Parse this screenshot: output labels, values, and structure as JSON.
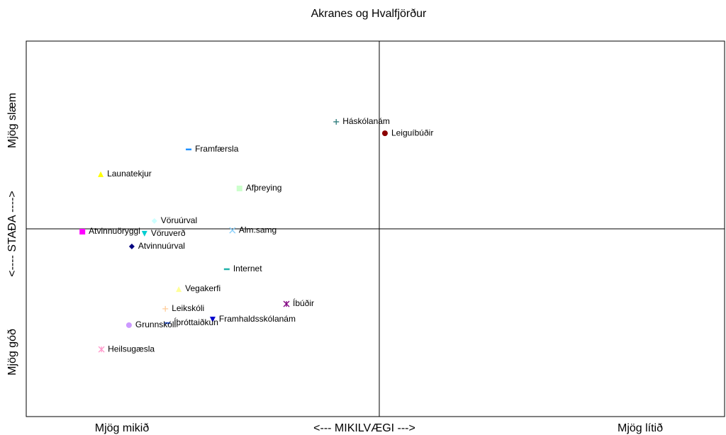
{
  "chart_data": {
    "type": "scatter",
    "title": "Akranes og Hvalfjörður",
    "x_labels": [
      "Mjög mikið",
      "<---   MIKILVÆGI   --->",
      "Mjög lítið"
    ],
    "y_labels": [
      "Mjög góð",
      "<----   STAÐA   ---->",
      "Mjög slæm"
    ],
    "xlim": [
      -1,
      0.978
    ],
    "ylim": [
      -1,
      1
    ],
    "series": [
      {
        "name": "Háskólanám",
        "color": "#2e7d7d",
        "marker": "plus",
        "x": -0.122,
        "y": 0.57
      },
      {
        "name": "Leiguíbúðir",
        "color": "#8b0000",
        "marker": "circle",
        "x": 0.016,
        "y": 0.509
      },
      {
        "name": "Framfærsla",
        "color": "#1e90ff",
        "marker": "dash",
        "x": -0.54,
        "y": 0.423
      },
      {
        "name": "Launatekjur",
        "color": "#ffff00",
        "marker": "triangle",
        "x": -0.789,
        "y": 0.291
      },
      {
        "name": "Afþreying",
        "color": "#ccffcc",
        "marker": "square",
        "x": -0.396,
        "y": 0.215
      },
      {
        "name": "Vöruúrval",
        "color": "#ccffff",
        "marker": "diamond",
        "x": -0.637,
        "y": 0.042
      },
      {
        "name": "Atvinnuöryggi",
        "color": "#ff00ff",
        "marker": "square",
        "x": -0.841,
        "y": -0.015
      },
      {
        "name": "Vöruverð",
        "color": "#00ced1",
        "marker": "triangle-down",
        "x": -0.665,
        "y": -0.026
      },
      {
        "name": "Alm.samg",
        "color": "#87cefa",
        "marker": "x",
        "x": -0.416,
        "y": -0.008
      },
      {
        "name": "Atvinnuúrval",
        "color": "#000080",
        "marker": "diamond",
        "x": -0.701,
        "y": -0.094
      },
      {
        "name": "Internet",
        "color": "#20b2aa",
        "marker": "dash",
        "x": -0.432,
        "y": -0.215
      },
      {
        "name": "Vegakerfi",
        "color": "#ffff99",
        "marker": "triangle",
        "x": -0.568,
        "y": -0.321
      },
      {
        "name": "Íbúðir",
        "color": "#800080",
        "marker": "asterisk",
        "x": -0.263,
        "y": -0.4
      },
      {
        "name": "Leikskóli",
        "color": "#ffcc99",
        "marker": "plus",
        "x": -0.606,
        "y": -0.426
      },
      {
        "name": "Framhaldsskólanám",
        "color": "#0000cd",
        "marker": "triangle-down",
        "x": -0.472,
        "y": -0.483
      },
      {
        "name": "Íþróttaiðkun",
        "color": "#4169e1",
        "marker": "dash",
        "x": -0.6,
        "y": -0.502
      },
      {
        "name": "Grunnskóli",
        "color": "#cc99ff",
        "marker": "circle",
        "x": -0.709,
        "y": -0.513
      },
      {
        "name": "Heilsugæsla",
        "color": "#ff99cc",
        "marker": "asterisk",
        "x": -0.787,
        "y": -0.642
      }
    ]
  }
}
